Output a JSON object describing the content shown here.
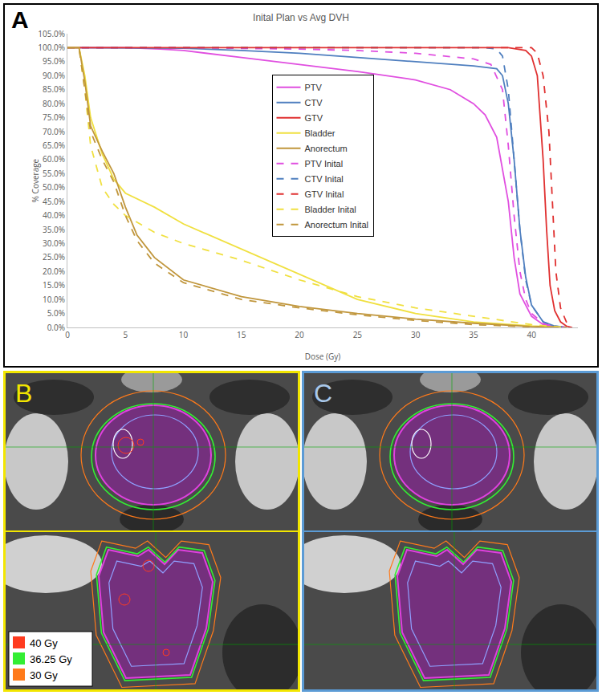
{
  "chart_data": {
    "type": "line",
    "title": "Inital Plan vs Avg DVH",
    "x_label": "Dose (Gy)",
    "y_label": "% Coverage",
    "xlim": [
      0,
      44
    ],
    "xticks": [
      0,
      5,
      10,
      15,
      20,
      25,
      30,
      35,
      40
    ],
    "ylim": [
      0,
      105
    ],
    "yticks": [
      {
        "value": 0,
        "label": "0.0%"
      },
      {
        "value": 5,
        "label": "5.0%"
      },
      {
        "value": 10,
        "label": "10.0%"
      },
      {
        "value": 15,
        "label": "15.0%"
      },
      {
        "value": 20,
        "label": "20.0%"
      },
      {
        "value": 25,
        "label": "25.0%"
      },
      {
        "value": 30,
        "label": "30.0%"
      },
      {
        "value": 35,
        "label": "35.0%"
      },
      {
        "value": 40,
        "label": "40.0%"
      },
      {
        "value": 45,
        "label": "45.0%"
      },
      {
        "value": 50,
        "label": "50.0%"
      },
      {
        "value": 55,
        "label": "55.0%"
      },
      {
        "value": 60,
        "label": "60.0%"
      },
      {
        "value": 65,
        "label": "65.0%"
      },
      {
        "value": 70,
        "label": "70.0%"
      },
      {
        "value": 75,
        "label": "75.0%"
      },
      {
        "value": 80,
        "label": "80.0%"
      },
      {
        "value": 85,
        "label": "85.0%"
      },
      {
        "value": 90,
        "label": "90.0%"
      },
      {
        "value": 95,
        "label": "95.0%"
      },
      {
        "value": 100,
        "label": "100.0%"
      },
      {
        "value": 105,
        "label": "105.0%"
      }
    ],
    "grid": false,
    "legend": "center",
    "series": [
      {
        "name": "PTV",
        "color": "#e04fe0",
        "line_style": "solid",
        "x": [
          0,
          5,
          8,
          10,
          15,
          20,
          25,
          30,
          33,
          35,
          36,
          37,
          38,
          38.5,
          39,
          40,
          41,
          42,
          43
        ],
        "values": [
          100,
          100,
          99.5,
          99,
          96.5,
          94,
          91.5,
          88.5,
          85,
          80,
          76,
          68,
          45,
          25,
          12,
          4,
          1,
          0.3,
          0
        ]
      },
      {
        "name": "CTV",
        "color": "#4f7fbf",
        "line_style": "solid",
        "x": [
          0,
          10,
          15,
          20,
          25,
          30,
          35,
          37,
          37.5,
          38,
          38.5,
          39,
          39.5,
          40,
          41,
          42,
          43
        ],
        "values": [
          100,
          99.8,
          99,
          98,
          96.5,
          95,
          93.5,
          92.5,
          90,
          80,
          60,
          35,
          18,
          8,
          2,
          0.5,
          0
        ]
      },
      {
        "name": "GTV",
        "color": "#e03030",
        "line_style": "solid",
        "x": [
          0,
          38,
          39.5,
          40,
          40.5,
          41,
          41.3,
          41.6,
          42,
          42.5,
          43,
          43.5
        ],
        "values": [
          100,
          100,
          99,
          97,
          90,
          60,
          35,
          15,
          6,
          2,
          0.5,
          0
        ]
      },
      {
        "name": "Bladder",
        "color": "#f0e040",
        "line_style": "solid",
        "x": [
          0,
          1,
          1.5,
          2,
          3,
          4,
          5,
          7.5,
          10,
          15,
          20,
          25,
          30,
          35,
          40,
          43
        ],
        "values": [
          100,
          100,
          90,
          75,
          62,
          53,
          48,
          43,
          37,
          28,
          19,
          10,
          5,
          2,
          0.5,
          0
        ]
      },
      {
        "name": "Anorectum",
        "color": "#c0963c",
        "line_style": "solid",
        "x": [
          0,
          1,
          1.5,
          2,
          3,
          4,
          5,
          6,
          7.5,
          10,
          15,
          20,
          25,
          30,
          35,
          40,
          43
        ],
        "values": [
          100,
          100,
          88,
          72,
          63,
          55,
          43,
          33,
          25,
          17,
          11,
          7.5,
          5,
          3,
          1.5,
          0.3,
          0
        ]
      },
      {
        "name": "PTV Inital",
        "color": "#e04fe0",
        "line_style": "dash",
        "x": [
          0,
          10,
          20,
          25,
          30,
          35,
          36.5,
          37.5,
          38,
          38.5,
          39,
          39.5,
          40,
          41,
          42,
          43
        ],
        "values": [
          100,
          100,
          99.5,
          99,
          98,
          96,
          94,
          85,
          65,
          40,
          20,
          10,
          5,
          1.5,
          0.3,
          0
        ]
      },
      {
        "name": "CTV Inital",
        "color": "#4f7fbf",
        "line_style": "dash",
        "x": [
          0,
          36,
          37,
          37.5,
          38,
          38.5,
          39,
          39.5,
          40,
          41,
          42,
          43
        ],
        "values": [
          100,
          100,
          99.5,
          97,
          85,
          60,
          35,
          17,
          8,
          2,
          0.5,
          0
        ]
      },
      {
        "name": "GTV Inital",
        "color": "#e03030",
        "line_style": "dash",
        "x": [
          0,
          40,
          40.5,
          41,
          41.5,
          41.8,
          42.1,
          42.5,
          43,
          43.5
        ],
        "values": [
          100,
          100,
          98,
          90,
          70,
          45,
          20,
          7,
          2,
          0
        ]
      },
      {
        "name": "Bladder Inital",
        "color": "#f0e040",
        "line_style": "dash",
        "x": [
          0,
          1,
          1.5,
          2,
          3,
          4,
          5,
          7.5,
          10,
          15,
          20,
          25,
          30,
          35,
          40,
          43
        ],
        "values": [
          100,
          100,
          85,
          65,
          50,
          44,
          40,
          34,
          30,
          24,
          17,
          11,
          7,
          4,
          1,
          0
        ]
      },
      {
        "name": "Anorectum Inital",
        "color": "#c0963c",
        "line_style": "dash",
        "x": [
          0,
          1,
          1.5,
          2,
          3,
          4,
          5,
          6,
          7.5,
          10,
          15,
          20,
          25,
          30,
          35,
          40,
          43
        ],
        "values": [
          100,
          100,
          85,
          70,
          60,
          52,
          40,
          31,
          23,
          16,
          10,
          7,
          4.5,
          2.5,
          1,
          0.2,
          0
        ]
      }
    ]
  },
  "figure": {
    "panel_labels": [
      "A",
      "B",
      "C"
    ],
    "isodose_legend": [
      {
        "label": "40 Gy",
        "color": "#ff3b1f"
      },
      {
        "label": "36.25 Gy",
        "color": "#33ee33"
      },
      {
        "label": "30 Gy",
        "color": "#ff7a1a"
      }
    ]
  }
}
